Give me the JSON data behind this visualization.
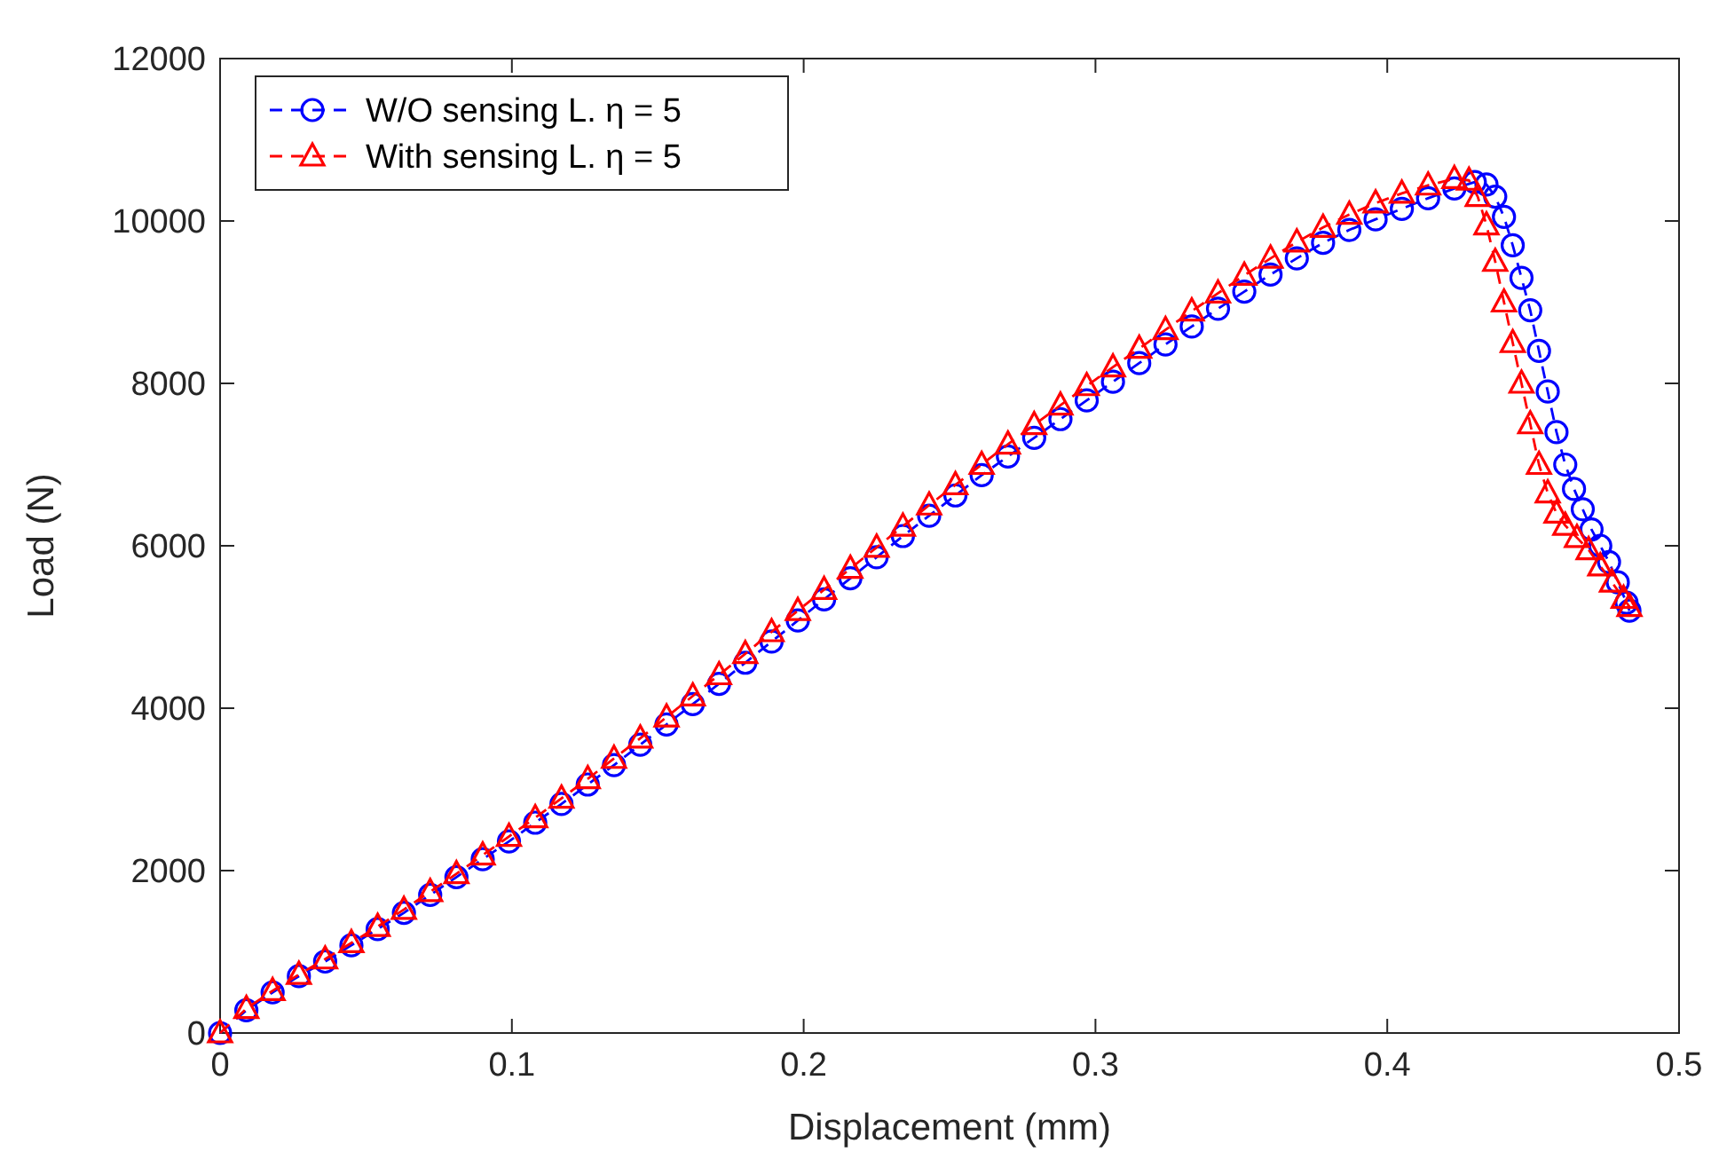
{
  "chart_data": {
    "type": "line",
    "xlabel": "Displacement (mm)",
    "ylabel": "Load (N)",
    "xlim": [
      0,
      0.5
    ],
    "xticks": [
      0,
      0.1,
      0.2,
      0.3,
      0.4,
      0.5
    ],
    "ylim": [
      0,
      12000
    ],
    "yticks": [
      0,
      2000,
      4000,
      6000,
      8000,
      10000,
      12000
    ],
    "grid": false,
    "legend": "top left",
    "series": [
      {
        "name": "W/O sensing L. η = 5",
        "color": "#0000ff",
        "marker": "circle",
        "line_style": "dashed",
        "x": [
          0,
          0.009,
          0.018,
          0.027,
          0.036,
          0.045,
          0.054,
          0.063,
          0.072,
          0.081,
          0.09,
          0.099,
          0.108,
          0.117,
          0.126,
          0.135,
          0.144,
          0.153,
          0.162,
          0.171,
          0.18,
          0.189,
          0.198,
          0.207,
          0.216,
          0.225,
          0.234,
          0.243,
          0.252,
          0.261,
          0.27,
          0.279,
          0.288,
          0.297,
          0.306,
          0.315,
          0.324,
          0.333,
          0.342,
          0.351,
          0.36,
          0.369,
          0.378,
          0.387,
          0.396,
          0.405,
          0.414,
          0.423,
          0.43,
          0.434,
          0.437,
          0.44,
          0.443,
          0.446,
          0.449,
          0.452,
          0.455,
          0.458,
          0.461,
          0.464,
          0.467,
          0.47,
          0.473,
          0.476,
          0.479,
          0.482,
          0.483
        ],
        "values": [
          0,
          280,
          500,
          700,
          880,
          1080,
          1280,
          1480,
          1700,
          1920,
          2140,
          2360,
          2590,
          2820,
          3060,
          3300,
          3550,
          3800,
          4050,
          4300,
          4560,
          4820,
          5080,
          5340,
          5600,
          5860,
          6120,
          6370,
          6620,
          6870,
          7100,
          7330,
          7560,
          7790,
          8020,
          8250,
          8480,
          8700,
          8920,
          9130,
          9340,
          9540,
          9730,
          9890,
          10020,
          10150,
          10280,
          10400,
          10480,
          10450,
          10300,
          10050,
          9700,
          9300,
          8900,
          8400,
          7900,
          7400,
          7000,
          6700,
          6450,
          6200,
          6000,
          5800,
          5550,
          5300,
          5200
        ]
      },
      {
        "name": "With sensing L. η = 5",
        "color": "#ff0000",
        "marker": "triangle",
        "line_style": "dashed",
        "x": [
          0,
          0.009,
          0.018,
          0.027,
          0.036,
          0.045,
          0.054,
          0.063,
          0.072,
          0.081,
          0.09,
          0.099,
          0.108,
          0.117,
          0.126,
          0.135,
          0.144,
          0.153,
          0.162,
          0.171,
          0.18,
          0.189,
          0.198,
          0.207,
          0.216,
          0.225,
          0.234,
          0.243,
          0.252,
          0.261,
          0.27,
          0.279,
          0.288,
          0.297,
          0.306,
          0.315,
          0.324,
          0.333,
          0.342,
          0.351,
          0.36,
          0.369,
          0.378,
          0.387,
          0.396,
          0.405,
          0.414,
          0.423,
          0.428,
          0.431,
          0.434,
          0.437,
          0.44,
          0.443,
          0.446,
          0.449,
          0.452,
          0.455,
          0.458,
          0.461,
          0.465,
          0.469,
          0.473,
          0.477,
          0.481,
          0.483
        ],
        "values": [
          0,
          300,
          520,
          720,
          910,
          1110,
          1310,
          1520,
          1740,
          1960,
          2190,
          2420,
          2650,
          2890,
          3130,
          3380,
          3630,
          3890,
          4150,
          4410,
          4670,
          4940,
          5200,
          5460,
          5720,
          5980,
          6240,
          6500,
          6750,
          7000,
          7250,
          7490,
          7730,
          7970,
          8200,
          8430,
          8660,
          8890,
          9110,
          9330,
          9540,
          9740,
          9920,
          10080,
          10220,
          10340,
          10440,
          10520,
          10500,
          10300,
          9950,
          9500,
          9000,
          8500,
          8000,
          7500,
          7000,
          6650,
          6400,
          6250,
          6100,
          5950,
          5750,
          5550,
          5350,
          5250
        ]
      }
    ]
  }
}
